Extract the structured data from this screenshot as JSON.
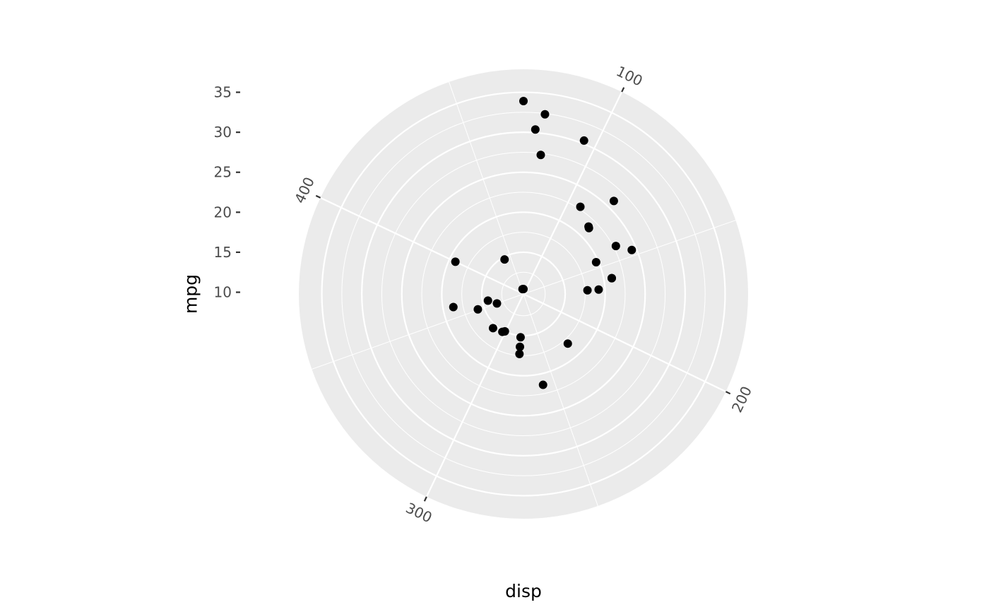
{
  "chart_data": {
    "type": "scatter",
    "coord": "polar",
    "xlabel": "disp",
    "ylabel": "mpg",
    "theta_ticks": [
      100,
      200,
      300,
      400
    ],
    "theta_range": [
      71.1,
      472
    ],
    "r_ticks": [
      10,
      15,
      20,
      25,
      30,
      35
    ],
    "r_range": [
      10.4,
      33.9
    ],
    "grid": true,
    "points": [
      {
        "x": 160.0,
        "y": 21.0
      },
      {
        "x": 160.0,
        "y": 21.0
      },
      {
        "x": 108.0,
        "y": 22.8
      },
      {
        "x": 258.0,
        "y": 21.4
      },
      {
        "x": 360.0,
        "y": 18.7
      },
      {
        "x": 225.0,
        "y": 18.1
      },
      {
        "x": 360.0,
        "y": 14.3
      },
      {
        "x": 146.7,
        "y": 24.4
      },
      {
        "x": 140.8,
        "y": 22.8
      },
      {
        "x": 167.6,
        "y": 19.2
      },
      {
        "x": 167.6,
        "y": 17.8
      },
      {
        "x": 275.8,
        "y": 16.4
      },
      {
        "x": 275.8,
        "y": 17.3
      },
      {
        "x": 275.8,
        "y": 15.2
      },
      {
        "x": 472.0,
        "y": 10.4
      },
      {
        "x": 460.0,
        "y": 10.4
      },
      {
        "x": 440.0,
        "y": 14.7
      },
      {
        "x": 78.7,
        "y": 32.4
      },
      {
        "x": 75.7,
        "y": 30.4
      },
      {
        "x": 71.1,
        "y": 33.9
      },
      {
        "x": 120.1,
        "y": 21.5
      },
      {
        "x": 318.0,
        "y": 15.5
      },
      {
        "x": 304.0,
        "y": 15.2
      },
      {
        "x": 350.0,
        "y": 13.3
      },
      {
        "x": 400.0,
        "y": 19.2
      },
      {
        "x": 79.0,
        "y": 27.3
      },
      {
        "x": 120.3,
        "y": 26.0
      },
      {
        "x": 95.1,
        "y": 30.4
      },
      {
        "x": 351.0,
        "y": 15.8
      },
      {
        "x": 145.0,
        "y": 19.7
      },
      {
        "x": 301.0,
        "y": 15.0
      },
      {
        "x": 121.0,
        "y": 21.4
      }
    ],
    "colors": {
      "panel": "#ebebeb",
      "grid": "#ffffff",
      "point": "#000000",
      "tick_label": "#4d4d4d",
      "tick_mark": "#333333"
    }
  }
}
